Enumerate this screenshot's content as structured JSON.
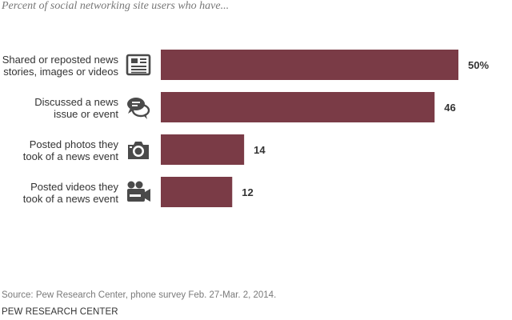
{
  "subtitle": "Percent of social networking site users who have...",
  "source": "Source: Pew Research Center, phone survey Feb. 27-Mar. 2, 2014.",
  "organization": "PEW RESEARCH CENTER",
  "colors": {
    "bar": "#7a3b46",
    "label_text": "#333333",
    "icon": "#4a4a4a",
    "subtitle": "#777777",
    "source": "#7a7a7a"
  },
  "chart_data": {
    "type": "bar",
    "orientation": "horizontal",
    "title": "",
    "xlabel": "",
    "ylabel": "",
    "xlim": [
      0,
      50
    ],
    "grid": false,
    "categories": [
      [
        "Shared or reposted news",
        "stories, images or videos"
      ],
      [
        "Discussed a news",
        "issue or event"
      ],
      [
        "Posted photos they",
        "took of a news event"
      ],
      [
        "Posted videos they",
        "took of a news event"
      ]
    ],
    "values": [
      50,
      46,
      14,
      12
    ],
    "value_labels": [
      "50%",
      "46",
      "14",
      "12"
    ],
    "icons": [
      "newspaper-icon",
      "speech-bubbles-icon",
      "camera-icon",
      "video-camera-icon"
    ]
  }
}
